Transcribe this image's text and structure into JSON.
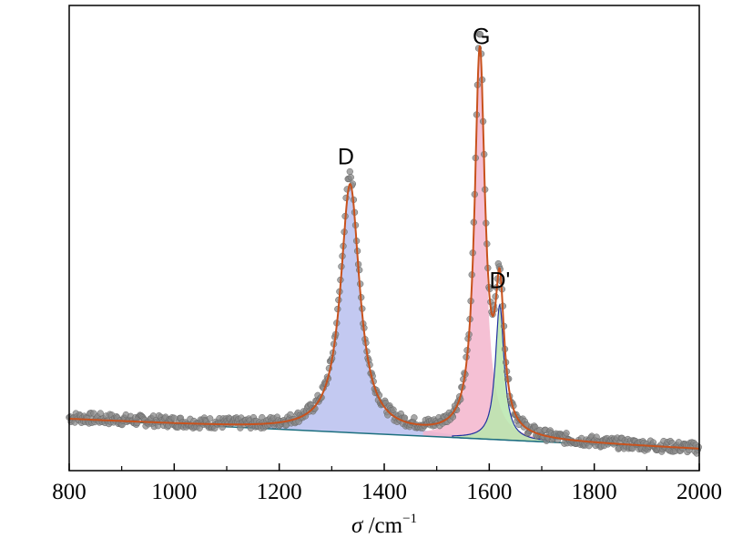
{
  "chart_data": {
    "type": "line",
    "xlabel": "σ /cm⁻¹",
    "xlabel_symbol": "σ",
    "xlabel_unit": " /cm",
    "xlabel_exp": "−1",
    "ylabel": "",
    "xlim": [
      800,
      2000
    ],
    "ylim": [
      0,
      1
    ],
    "x_ticks": [
      800,
      1000,
      1200,
      1400,
      1600,
      1800,
      2000
    ],
    "x_tick_labels": [
      "800",
      "1000",
      "1200",
      "1400",
      "1600",
      "1800",
      "2000"
    ],
    "y_ticks_shown": false,
    "grid": false,
    "legend": "none",
    "baseline": {
      "x": [
        800,
        2000
      ],
      "y": [
        0.12,
        0.04
      ]
    },
    "peaks": [
      {
        "label": "D",
        "center": 1335,
        "height": 0.66,
        "width": 22,
        "fill": "#b8bfee",
        "label_x": 1327,
        "label_y": 0.8
      },
      {
        "label": "G",
        "center": 1582,
        "height": 1.02,
        "width": 12,
        "fill": "#f3b5cc",
        "label_x": 1585,
        "label_y": 1.12
      },
      {
        "label": "D'",
        "center": 1620,
        "height": 0.36,
        "width": 10,
        "fill": "#b8e6ad",
        "label_x": 1620,
        "label_y": 0.47
      }
    ],
    "colors": {
      "fit_envelope": "#c8521d",
      "baseline_line": "#1c6f7f",
      "data_points": "#8a8a8a",
      "d_prime_component": "#2030a0"
    }
  }
}
